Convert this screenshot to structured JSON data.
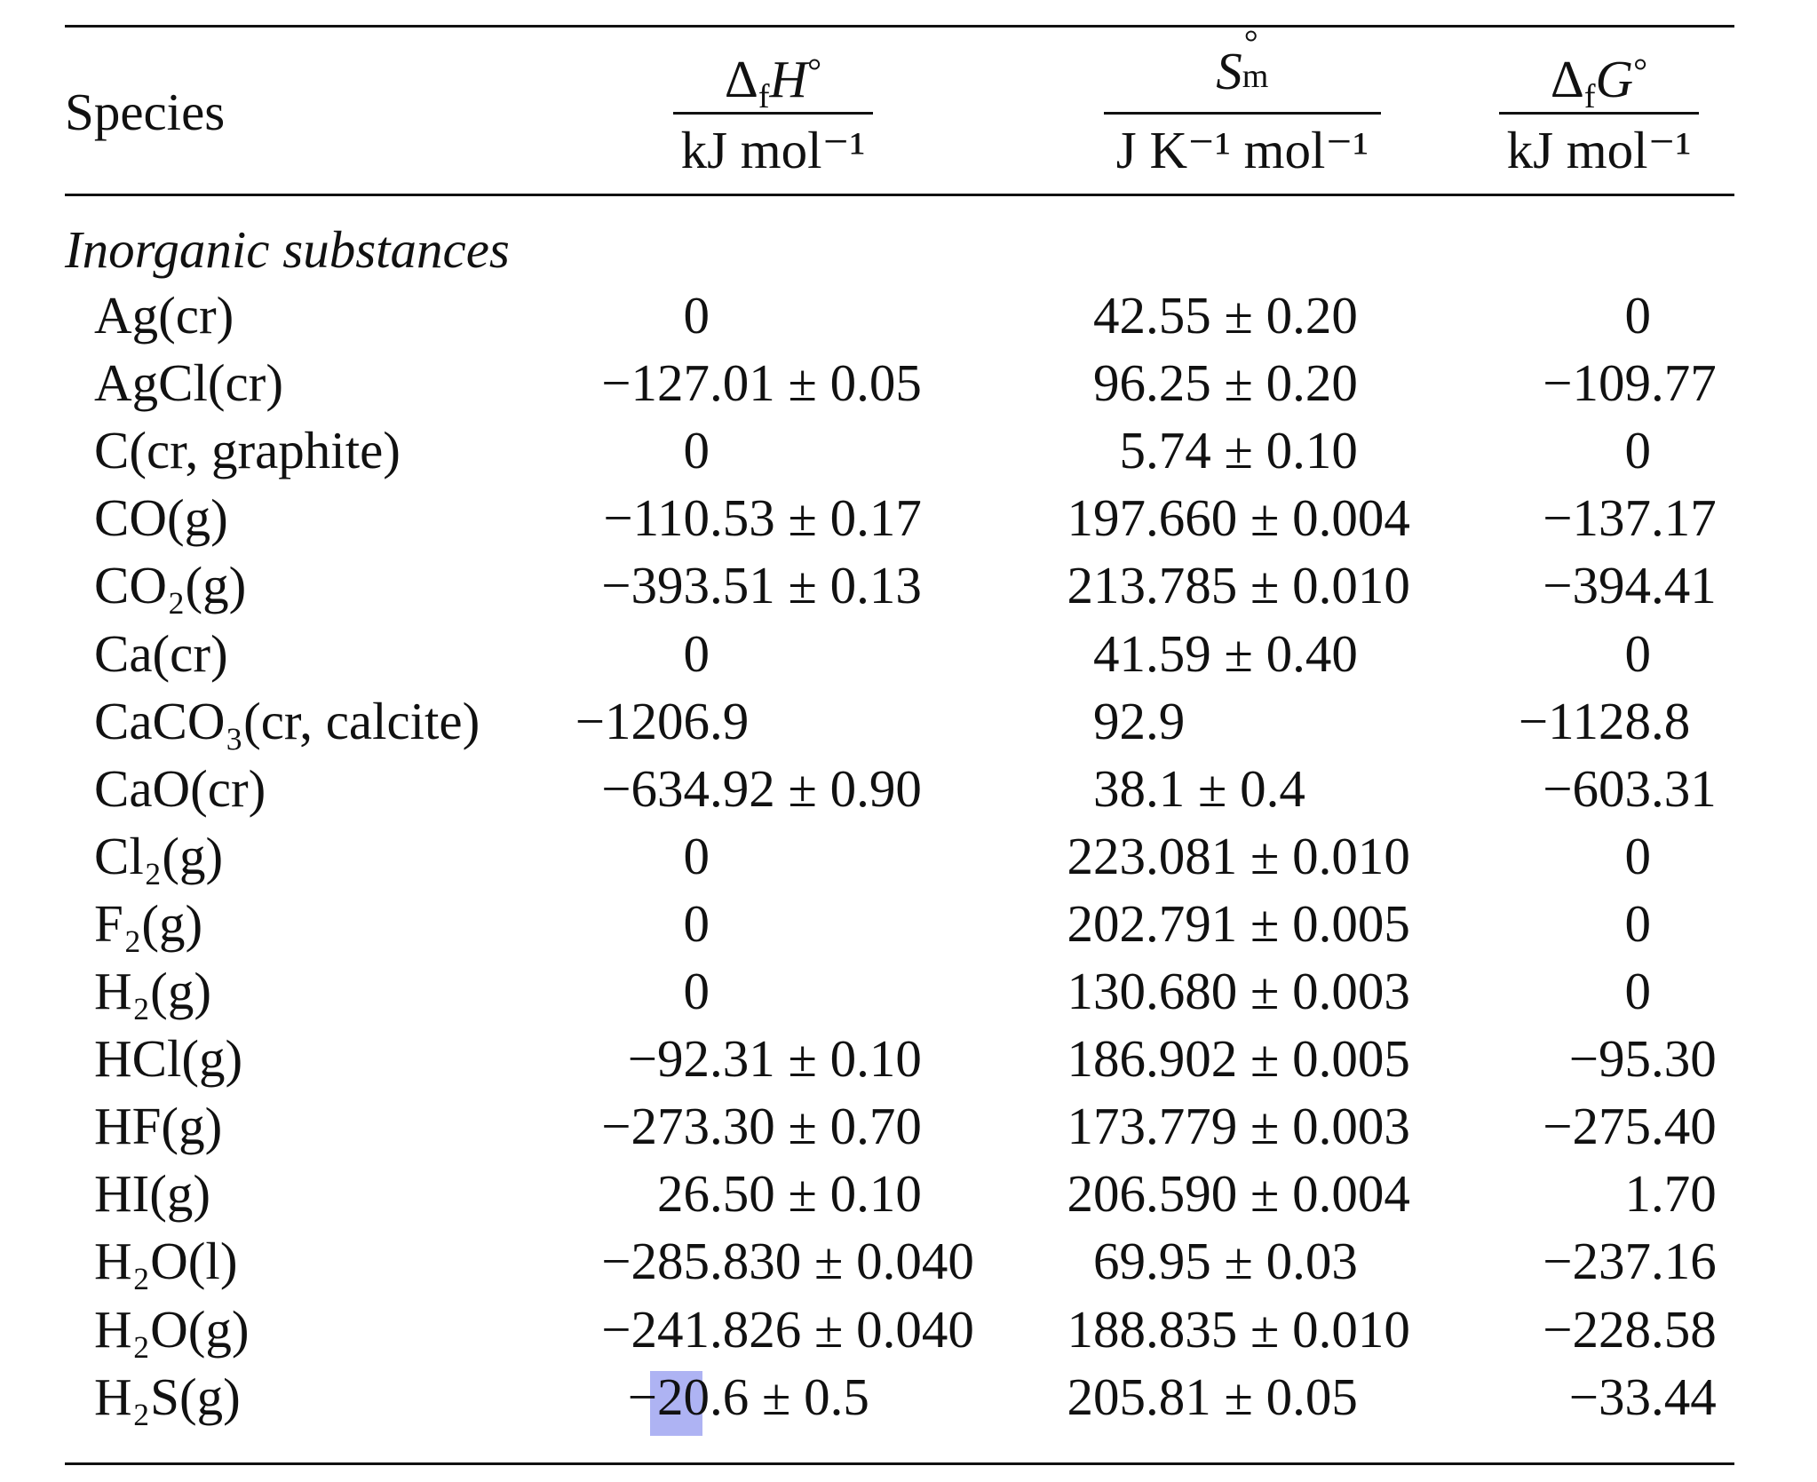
{
  "header": {
    "species": "Species",
    "columns": [
      {
        "delta": "Δ",
        "sub": "f",
        "symbol": "H",
        "sup": "°",
        "unit": "kJ mol⁻¹"
      },
      {
        "symbol": "S",
        "sup": "°",
        "sub": "m",
        "unit": "J K⁻¹ mol⁻¹"
      },
      {
        "delta": "Δ",
        "sub": "f",
        "symbol": "G",
        "sup": "°",
        "unit": "kJ mol⁻¹"
      }
    ]
  },
  "section": "Inorganic substances",
  "rows": [
    [
      "Ag(cr)",
      "0",
      "42.55 ± 0.20",
      "0"
    ],
    [
      "AgCl(cr)",
      "−127.01 ± 0.05",
      "96.25 ± 0.20",
      "−109.77"
    ],
    [
      "C(cr, graphite)",
      "0",
      "5.74 ± 0.10",
      "0"
    ],
    [
      "CO(g)",
      "−110.53 ± 0.17",
      "197.660 ± 0.004",
      "−137.17"
    ],
    [
      "CO₂(g)",
      "−393.51 ± 0.13",
      "213.785 ± 0.010",
      "−394.41"
    ],
    [
      "Ca(cr)",
      "0",
      "41.59 ± 0.40",
      "0"
    ],
    [
      "CaCO₃(cr, calcite)",
      "−1206.9",
      "92.9",
      "−1128.8"
    ],
    [
      "CaO(cr)",
      "−634.92 ± 0.90",
      "38.1 ± 0.4",
      "−603.31"
    ],
    [
      "Cl₂(g)",
      "0",
      "223.081 ± 0.010",
      "0"
    ],
    [
      "F₂(g)",
      "0",
      "202.791 ± 0.005",
      "0"
    ],
    [
      "H₂(g)",
      "0",
      "130.680 ± 0.003",
      "0"
    ],
    [
      "HCl(g)",
      "−92.31 ± 0.10",
      "186.902 ± 0.005",
      "−95.30"
    ],
    [
      "HF(g)",
      "−273.30 ± 0.70",
      "173.779 ± 0.003",
      "−275.40"
    ],
    [
      "HI(g)",
      "26.50 ± 0.10",
      "206.590 ± 0.004",
      "1.70"
    ],
    [
      "H₂O(l)",
      "−285.830 ± 0.040",
      "69.95 ± 0.03",
      "−237.16"
    ],
    [
      "H₂O(g)",
      "−241.826 ± 0.040",
      "188.835 ± 0.010",
      "−228.58"
    ],
    [
      "H₂S(g)",
      "−20.6 ± 0.5",
      "205.81 ± 0.05",
      "−33.44"
    ]
  ]
}
